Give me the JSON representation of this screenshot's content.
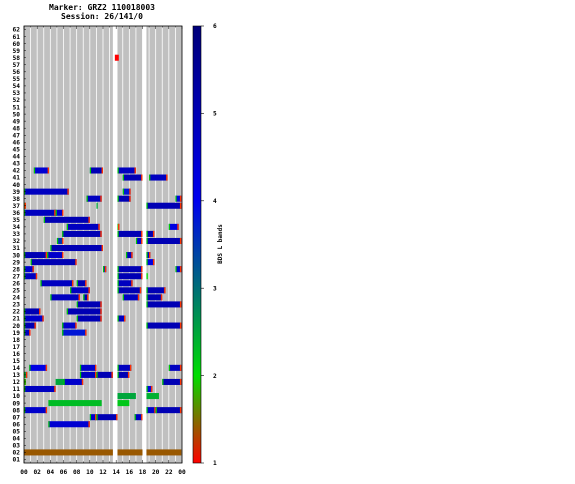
{
  "chart_data": {
    "type": "heatmap",
    "title": "Marker: GRZ2 110018003",
    "subtitle": "Session: 26/141/0",
    "xlabel": "",
    "ylabel": "",
    "colorbar_label": "BDS L bands",
    "x_ticks": [
      "00",
      "02",
      "04",
      "06",
      "08",
      "10",
      "12",
      "14",
      "16",
      "18",
      "20",
      "22",
      "00"
    ],
    "x_range": [
      0,
      24
    ],
    "y_range": [
      1,
      62
    ],
    "colorbar_range": [
      1,
      6
    ],
    "colorbar_ticks": [
      1,
      2,
      3,
      4,
      5,
      6
    ],
    "colorscale": [
      "#ff0000",
      "#00dd00",
      "#0000ee",
      "#00007a"
    ],
    "background_color": "#c0c0c0",
    "data_gaps": [
      [
        13.5,
        14.2
      ],
      [
        18.0,
        18.6
      ]
    ],
    "tracks": [
      {
        "prn": 2,
        "segments": [
          [
            0.0,
            13.5,
            1.4
          ],
          [
            14.2,
            18.0,
            1.4
          ],
          [
            18.6,
            23.9,
            1.4
          ]
        ]
      },
      {
        "prn": 6,
        "segments": [
          [
            3.7,
            10.0,
            4.5
          ]
        ]
      },
      {
        "prn": 7,
        "segments": [
          [
            10.0,
            11.0,
            4.6
          ],
          [
            11.0,
            14.2,
            5.0
          ],
          [
            16.8,
            18.0,
            4.8
          ]
        ]
      },
      {
        "prn": 8,
        "segments": [
          [
            0.0,
            3.5,
            4.6
          ],
          [
            18.6,
            20.0,
            4.6
          ],
          [
            20.0,
            23.9,
            5.0
          ]
        ]
      },
      {
        "prn": 9,
        "segments": [
          [
            3.7,
            11.8,
            2.3
          ],
          [
            14.2,
            16.0,
            2.2
          ]
        ]
      },
      {
        "prn": 10,
        "segments": [
          [
            14.2,
            17.0,
            2.5
          ],
          [
            18.6,
            20.5,
            2.4
          ]
        ]
      },
      {
        "prn": 11,
        "segments": [
          [
            0.0,
            4.8,
            4.8
          ],
          [
            18.6,
            19.5,
            4.2
          ]
        ]
      },
      {
        "prn": 12,
        "segments": [
          [
            0.0,
            0.3,
            1.8
          ],
          [
            4.8,
            6.0,
            2.5
          ],
          [
            6.0,
            9.0,
            4.6
          ],
          [
            21.0,
            23.9,
            5.0
          ]
        ]
      },
      {
        "prn": 13,
        "segments": [
          [
            0.0,
            0.5,
            3.0
          ],
          [
            8.5,
            11.0,
            4.8
          ],
          [
            11.0,
            13.5,
            5.0
          ],
          [
            14.2,
            16.0,
            5.0
          ]
        ]
      },
      {
        "prn": 14,
        "segments": [
          [
            0.8,
            3.5,
            4.2
          ],
          [
            8.5,
            11.0,
            4.6
          ],
          [
            14.2,
            16.3,
            4.8
          ],
          [
            22.0,
            23.9,
            4.8
          ]
        ]
      },
      {
        "prn": 19,
        "segments": [
          [
            0.0,
            1.0,
            4.8
          ],
          [
            5.8,
            9.5,
            3.8
          ]
        ]
      },
      {
        "prn": 20,
        "segments": [
          [
            0.0,
            1.8,
            5.0
          ],
          [
            5.8,
            8.0,
            4.6
          ],
          [
            18.6,
            23.9,
            5.0
          ]
        ]
      },
      {
        "prn": 21,
        "segments": [
          [
            0.0,
            3.0,
            4.6
          ],
          [
            8.0,
            11.8,
            5.0
          ],
          [
            14.2,
            15.4,
            4.8
          ]
        ]
      },
      {
        "prn": 22,
        "segments": [
          [
            0.0,
            2.5,
            5.0
          ],
          [
            6.5,
            11.8,
            5.0
          ]
        ]
      },
      {
        "prn": 23,
        "segments": [
          [
            8.0,
            11.8,
            5.0
          ],
          [
            18.6,
            23.9,
            5.0
          ]
        ]
      },
      {
        "prn": 24,
        "segments": [
          [
            4.0,
            8.5,
            4.8
          ],
          [
            9.0,
            9.8,
            5.0
          ],
          [
            15.0,
            17.5,
            4.8
          ],
          [
            18.6,
            21.0,
            5.0
          ]
        ]
      },
      {
        "prn": 25,
        "segments": [
          [
            7.0,
            10.0,
            4.8
          ],
          [
            14.2,
            17.8,
            5.0
          ],
          [
            18.6,
            21.5,
            5.0
          ]
        ]
      },
      {
        "prn": 26,
        "segments": [
          [
            2.5,
            7.5,
            4.8
          ],
          [
            8.0,
            9.5,
            5.0
          ],
          [
            14.2,
            16.5,
            4.8
          ]
        ]
      },
      {
        "prn": 27,
        "segments": [
          [
            0.0,
            2.0,
            4.8
          ],
          [
            14.2,
            18.0,
            5.0
          ],
          [
            18.6,
            18.8,
            2.0
          ]
        ]
      },
      {
        "prn": 28,
        "segments": [
          [
            0.0,
            1.5,
            4.5
          ],
          [
            12.0,
            12.5,
            4.2
          ],
          [
            14.2,
            18.0,
            5.0
          ],
          [
            23.0,
            23.9,
            4.5
          ]
        ]
      },
      {
        "prn": 29,
        "segments": [
          [
            1.0,
            8.0,
            5.0
          ],
          [
            18.6,
            19.8,
            4.2
          ]
        ]
      },
      {
        "prn": 30,
        "segments": [
          [
            0.0,
            3.5,
            5.0
          ],
          [
            3.5,
            6.0,
            4.6
          ],
          [
            15.5,
            16.5,
            4.8
          ],
          [
            18.6,
            19.2,
            4.6
          ]
        ]
      },
      {
        "prn": 31,
        "segments": [
          [
            4.0,
            12.0,
            5.0
          ]
        ]
      },
      {
        "prn": 32,
        "segments": [
          [
            5.0,
            6.0,
            3.5
          ],
          [
            17.0,
            18.0,
            4.5
          ],
          [
            18.6,
            23.9,
            5.0
          ]
        ]
      },
      {
        "prn": 33,
        "segments": [
          [
            5.8,
            11.8,
            5.0
          ],
          [
            14.2,
            18.0,
            5.0
          ],
          [
            18.6,
            19.8,
            5.0
          ]
        ]
      },
      {
        "prn": 34,
        "segments": [
          [
            6.5,
            11.5,
            4.8
          ],
          [
            14.2,
            14.5,
            3.0
          ],
          [
            22.0,
            23.5,
            4.2
          ]
        ]
      },
      {
        "prn": 35,
        "segments": [
          [
            3.0,
            10.0,
            5.0
          ]
        ]
      },
      {
        "prn": 36,
        "segments": [
          [
            0.0,
            4.8,
            4.8
          ],
          [
            4.8,
            6.0,
            4.5
          ]
        ]
      },
      {
        "prn": 37,
        "segments": [
          [
            0.0,
            0.3,
            3.5
          ],
          [
            11.0,
            11.2,
            2.5
          ],
          [
            18.6,
            23.9,
            5.0
          ]
        ]
      },
      {
        "prn": 38,
        "segments": [
          [
            9.5,
            11.8,
            4.8
          ],
          [
            14.2,
            16.2,
            5.0
          ],
          [
            23.0,
            23.9,
            4.2
          ]
        ]
      },
      {
        "prn": 39,
        "segments": [
          [
            0.0,
            6.8,
            4.8
          ],
          [
            15.0,
            16.2,
            3.8
          ]
        ]
      },
      {
        "prn": 41,
        "segments": [
          [
            15.0,
            18.0,
            5.0
          ],
          [
            19.0,
            21.8,
            4.8
          ]
        ]
      },
      {
        "prn": 42,
        "segments": [
          [
            1.5,
            3.8,
            4.5
          ],
          [
            10.0,
            12.0,
            5.0
          ],
          [
            14.2,
            17.0,
            4.8
          ]
        ]
      },
      {
        "prn": 58,
        "segments": [
          [
            13.8,
            14.4,
            1.0
          ]
        ]
      }
    ]
  }
}
